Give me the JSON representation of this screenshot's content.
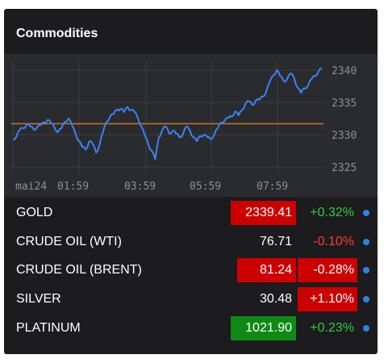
{
  "widget": {
    "title": "Commodities"
  },
  "colors": {
    "background": "#1c1c1e",
    "chart_background": "#2a2b2e",
    "line": "#3b82f6",
    "reference_line": "#c8742a",
    "positive": "#2ecc40",
    "negative": "#ff3b30",
    "badge_red": "#cc0000",
    "badge_green": "#0e8a14",
    "dot": "#2f80ed"
  },
  "chart_data": {
    "type": "line",
    "series_color": "#3b82f6",
    "x_tick_labels": [
      "mai24",
      "01:59",
      "03:59",
      "05:59",
      "07:59"
    ],
    "y_tick_labels": [
      "2340",
      "2335",
      "2330",
      "2325"
    ],
    "ylim": [
      2324,
      2341.5
    ],
    "reference_value": 2331.7,
    "grid": true,
    "values": [
      2329.3,
      2329.7,
      2330.8,
      2331.0,
      2331.6,
      2331.3,
      2330.8,
      2331.2,
      2331.5,
      2331.9,
      2332.3,
      2331.8,
      2331.1,
      2330.4,
      2331.0,
      2332.0,
      2332.5,
      2331.5,
      2330.2,
      2329.0,
      2328.1,
      2327.7,
      2329.0,
      2328.6,
      2327.2,
      2328.5,
      2330.5,
      2332.0,
      2332.8,
      2333.2,
      2333.9,
      2334.0,
      2333.5,
      2334.3,
      2333.8,
      2333.6,
      2332.6,
      2331.3,
      2329.9,
      2328.5,
      2327.5,
      2326.2,
      2329.5,
      2330.7,
      2331.3,
      2330.2,
      2330.6,
      2330.2,
      2329.6,
      2330.1,
      2331.3,
      2330.6,
      2329.6,
      2329.0,
      2329.8,
      2330.0,
      2329.6,
      2329.3,
      2330.0,
      2331.0,
      2331.9,
      2332.2,
      2332.6,
      2332.8,
      2333.6,
      2333.0,
      2333.8,
      2334.8,
      2335.2,
      2334.6,
      2335.3,
      2335.4,
      2335.9,
      2336.7,
      2338.2,
      2339.2,
      2340.0,
      2339.1,
      2338.3,
      2338.6,
      2339.5,
      2338.8,
      2337.3,
      2336.5,
      2337.2,
      2337.6,
      2338.6,
      2339.1,
      2339.8,
      2340.3
    ]
  },
  "rows": [
    {
      "name": "GOLD",
      "price": "2339.41",
      "change": "+0.32%",
      "price_badge": "#cc0000",
      "change_badge": "",
      "change_color": "#2ecc40"
    },
    {
      "name": "CRUDE OIL (WTI)",
      "price": "76.71",
      "change": "-0.10%",
      "price_badge": "",
      "change_badge": "",
      "change_color": "#ff3b30"
    },
    {
      "name": "CRUDE OIL (BRENT)",
      "price": "81.24",
      "change": "-0.28%",
      "price_badge": "#cc0000",
      "change_badge": "#cc0000",
      "change_color": "#ffffff"
    },
    {
      "name": "SILVER",
      "price": "30.48",
      "change": "+1.10%",
      "price_badge": "",
      "change_badge": "#cc0000",
      "change_color": "#ffffff"
    },
    {
      "name": "PLATINUM",
      "price": "1021.90",
      "change": "+0.23%",
      "price_badge": "#0e8a14",
      "change_badge": "",
      "change_color": "#2ecc40"
    }
  ]
}
